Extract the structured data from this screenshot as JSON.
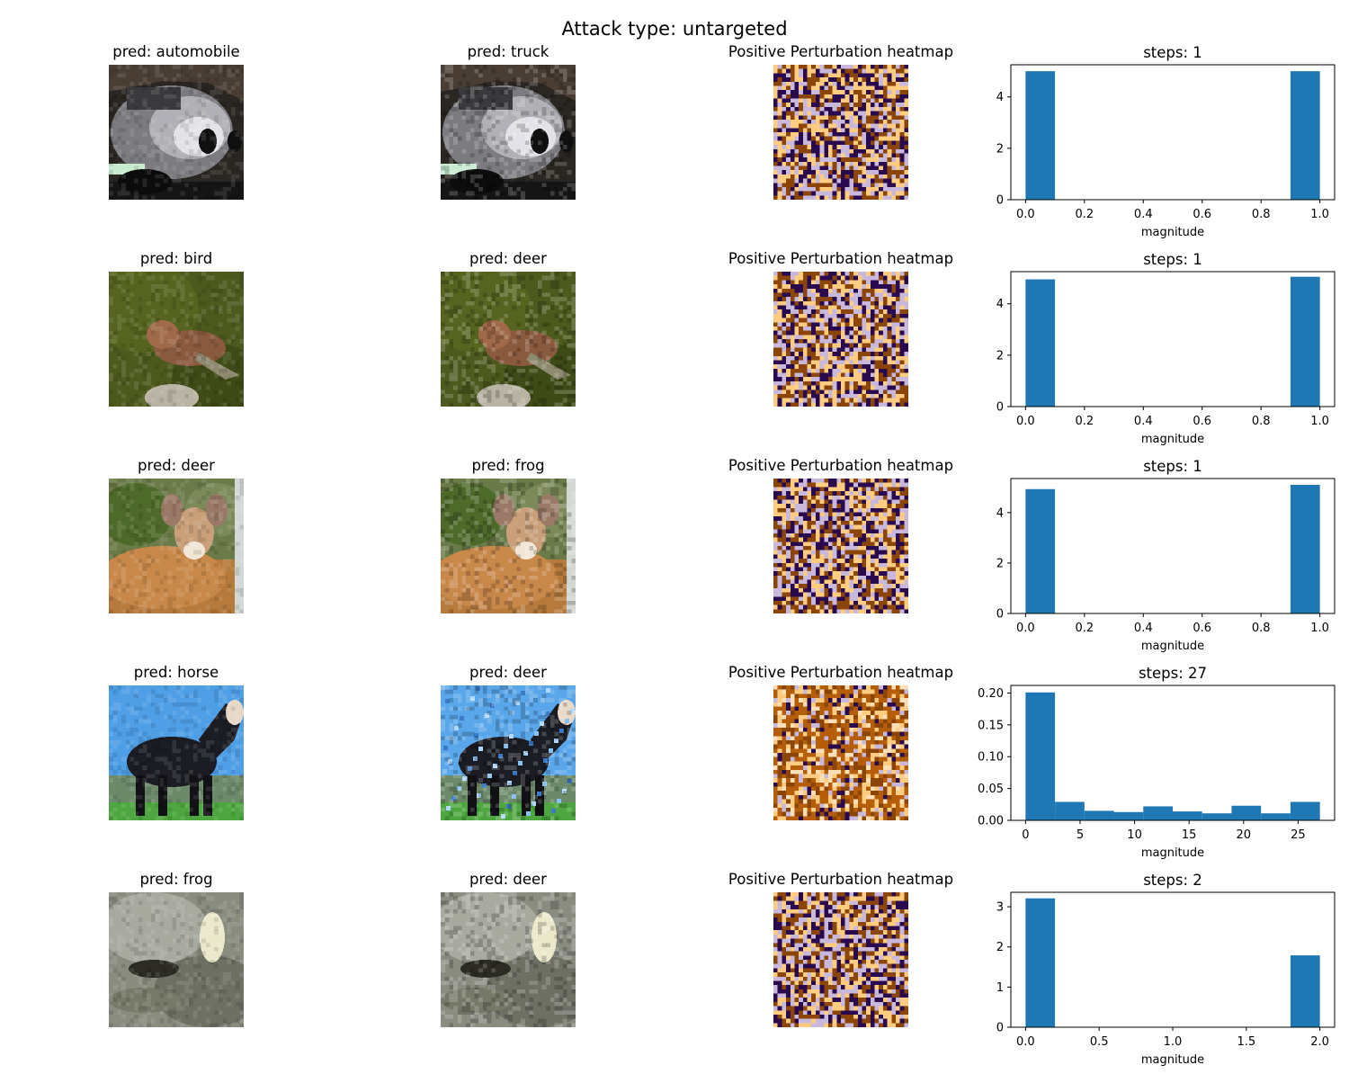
{
  "suptitle": "Attack type: untargeted",
  "colors": {
    "bar": "#1f77b4",
    "heat": [
      "#ffcc80",
      "#c8b8dc",
      "#8a4507",
      "#2a0a4e",
      "#b55d08",
      "#fde0b8"
    ]
  },
  "rows": [
    {
      "orig_title": "pred: automobile",
      "adv_title": "pred: truck",
      "heat_title": "Positive Perturbation heatmap",
      "scene": "car",
      "heat_style": "binary",
      "chart_data": {
        "type": "bar",
        "title": "steps: 1",
        "xlabel": "magnitude",
        "xlim": [
          -0.05,
          1.05
        ],
        "xticks": [
          "0.0",
          "0.2",
          "0.4",
          "0.6",
          "0.8",
          "1.0"
        ],
        "xtick_values": [
          0,
          0.2,
          0.4,
          0.6,
          0.8,
          1.0
        ],
        "ylim": [
          0,
          5.25
        ],
        "yticks": [
          "0",
          "2",
          "4"
        ],
        "ytick_values": [
          0,
          2,
          4
        ],
        "bins": [
          [
            0,
            0.1,
            5
          ],
          [
            0.9,
            1.0,
            5
          ]
        ]
      }
    },
    {
      "orig_title": "pred: bird",
      "adv_title": "pred: deer",
      "heat_title": "Positive Perturbation heatmap",
      "scene": "bird",
      "heat_style": "binary",
      "chart_data": {
        "type": "bar",
        "title": "steps: 1",
        "xlabel": "magnitude",
        "xlim": [
          -0.05,
          1.05
        ],
        "xticks": [
          "0.0",
          "0.2",
          "0.4",
          "0.6",
          "0.8",
          "1.0"
        ],
        "xtick_values": [
          0,
          0.2,
          0.4,
          0.6,
          0.8,
          1.0
        ],
        "ylim": [
          0,
          5.25
        ],
        "yticks": [
          "0",
          "2",
          "4"
        ],
        "ytick_values": [
          0,
          2,
          4
        ],
        "bins": [
          [
            0,
            0.1,
            4.95
          ],
          [
            0.9,
            1.0,
            5.05
          ]
        ]
      }
    },
    {
      "orig_title": "pred: deer",
      "adv_title": "pred: frog",
      "heat_title": "Positive Perturbation heatmap",
      "scene": "deer",
      "heat_style": "binary",
      "chart_data": {
        "type": "bar",
        "title": "steps: 1",
        "xlabel": "magnitude",
        "xlim": [
          -0.05,
          1.05
        ],
        "xticks": [
          "0.0",
          "0.2",
          "0.4",
          "0.6",
          "0.8",
          "1.0"
        ],
        "xtick_values": [
          0,
          0.2,
          0.4,
          0.6,
          0.8,
          1.0
        ],
        "ylim": [
          0,
          5.35
        ],
        "yticks": [
          "0",
          "2",
          "4"
        ],
        "ytick_values": [
          0,
          2,
          4
        ],
        "bins": [
          [
            0,
            0.1,
            4.93
          ],
          [
            0.9,
            1.0,
            5.1
          ]
        ]
      }
    },
    {
      "orig_title": "pred: horse",
      "adv_title": "pred: deer",
      "heat_title": "Positive Perturbation heatmap",
      "scene": "horse",
      "heat_style": "multi",
      "chart_data": {
        "type": "bar",
        "title": "steps: 27",
        "xlabel": "magnitude",
        "xlim": [
          -1.35,
          28.35
        ],
        "xticks": [
          "0",
          "5",
          "10",
          "15",
          "20",
          "25"
        ],
        "xtick_values": [
          0,
          5,
          10,
          15,
          20,
          25
        ],
        "ylim": [
          0,
          0.212
        ],
        "yticks": [
          "0.00",
          "0.05",
          "0.10",
          "0.15",
          "0.20"
        ],
        "ytick_values": [
          0,
          0.05,
          0.1,
          0.15,
          0.2
        ],
        "bins": [
          [
            0,
            2.7,
            0.201
          ],
          [
            2.7,
            5.4,
            0.029
          ],
          [
            5.4,
            8.1,
            0.015
          ],
          [
            8.1,
            10.8,
            0.013
          ],
          [
            10.8,
            13.5,
            0.022
          ],
          [
            13.5,
            16.2,
            0.014
          ],
          [
            16.2,
            18.9,
            0.011
          ],
          [
            18.9,
            21.6,
            0.023
          ],
          [
            21.6,
            24.3,
            0.011
          ],
          [
            24.3,
            27.0,
            0.029
          ]
        ]
      }
    },
    {
      "orig_title": "pred: frog",
      "adv_title": "pred: deer",
      "heat_title": "Positive Perturbation heatmap",
      "scene": "frog",
      "heat_style": "binary",
      "chart_data": {
        "type": "bar",
        "title": "steps: 2",
        "xlabel": "magnitude",
        "xlim": [
          -0.1,
          2.1
        ],
        "xticks": [
          "0.0",
          "0.5",
          "1.0",
          "1.5",
          "2.0"
        ],
        "xtick_values": [
          0,
          0.5,
          1.0,
          1.5,
          2.0
        ],
        "ylim": [
          0,
          3.36
        ],
        "yticks": [
          "0",
          "1",
          "2",
          "3"
        ],
        "ytick_values": [
          0,
          1,
          2,
          3
        ],
        "bins": [
          [
            0,
            0.2,
            3.21
          ],
          [
            1.8,
            2.0,
            1.79
          ]
        ]
      }
    }
  ]
}
